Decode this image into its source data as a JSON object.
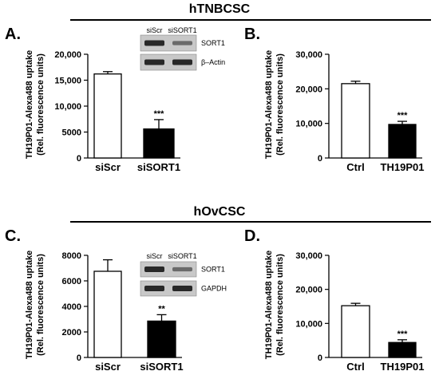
{
  "sections": [
    {
      "title": "hTNBCSC"
    },
    {
      "title": "hOvCSC"
    }
  ],
  "chart_data": [
    {
      "panel": "A.",
      "type": "bar",
      "categories": [
        "siScr",
        "siSORT1"
      ],
      "values": [
        16200,
        5600
      ],
      "errors": [
        450,
        1800
      ],
      "fills": [
        "#ffffff",
        "#000000"
      ],
      "significance": [
        "",
        "***"
      ],
      "ylabel": [
        "TH19P01-Alexa488 uptake",
        "(Rel. fluorescence units)"
      ],
      "ylim": [
        0,
        20000
      ],
      "yticks": [
        0,
        5000,
        10000,
        15000,
        20000
      ],
      "yticklabels": [
        "0",
        "5000",
        "10,000",
        "15,000",
        "20,000"
      ],
      "inset": {
        "lanes": [
          "siScr",
          "siSORT1"
        ],
        "rows": [
          "SORT1",
          "β–Actin"
        ],
        "band_intensity": [
          [
            1.0,
            0.45
          ],
          [
            1.0,
            1.0
          ]
        ]
      }
    },
    {
      "panel": "B.",
      "type": "bar",
      "categories": [
        "Ctrl",
        "TH19P01"
      ],
      "values": [
        21500,
        9700
      ],
      "errors": [
        700,
        900
      ],
      "fills": [
        "#ffffff",
        "#000000"
      ],
      "significance": [
        "",
        "***"
      ],
      "ylabel": [
        "TH19P01-Alexa488 uptake",
        "(Rel. fluorescence units)"
      ],
      "ylim": [
        0,
        30000
      ],
      "yticks": [
        0,
        10000,
        20000,
        30000
      ],
      "yticklabels": [
        "0",
        "10,000",
        "20,000",
        "30,000"
      ]
    },
    {
      "panel": "C.",
      "type": "bar",
      "categories": [
        "siScr",
        "siSORT1"
      ],
      "values": [
        6750,
        2850
      ],
      "errors": [
        900,
        500
      ],
      "fills": [
        "#ffffff",
        "#000000"
      ],
      "significance": [
        "",
        "**"
      ],
      "ylabel": [
        "TH19P01-Alexa488 uptake",
        "(Rel. fluorescence units)"
      ],
      "ylim": [
        0,
        8000
      ],
      "yticks": [
        0,
        2000,
        4000,
        6000,
        8000
      ],
      "yticklabels": [
        "0",
        "2000",
        "4000",
        "6000",
        "8000"
      ],
      "inset": {
        "lanes": [
          "siScr",
          "siSORT1"
        ],
        "rows": [
          "SORT1",
          "GAPDH"
        ],
        "band_intensity": [
          [
            1.0,
            0.45
          ],
          [
            1.0,
            1.0
          ]
        ]
      }
    },
    {
      "panel": "D.",
      "type": "bar",
      "categories": [
        "Ctrl",
        "TH19P01"
      ],
      "values": [
        15200,
        4400
      ],
      "errors": [
        700,
        800
      ],
      "fills": [
        "#ffffff",
        "#000000"
      ],
      "significance": [
        "",
        "***"
      ],
      "ylabel": [
        "TH19P01-Alexa488 uptake",
        "(Rel. fluorescence units)"
      ],
      "ylim": [
        0,
        30000
      ],
      "yticks": [
        0,
        10000,
        20000,
        30000
      ],
      "yticklabels": [
        "0",
        "10,000",
        "20,000",
        "30,000"
      ]
    }
  ]
}
